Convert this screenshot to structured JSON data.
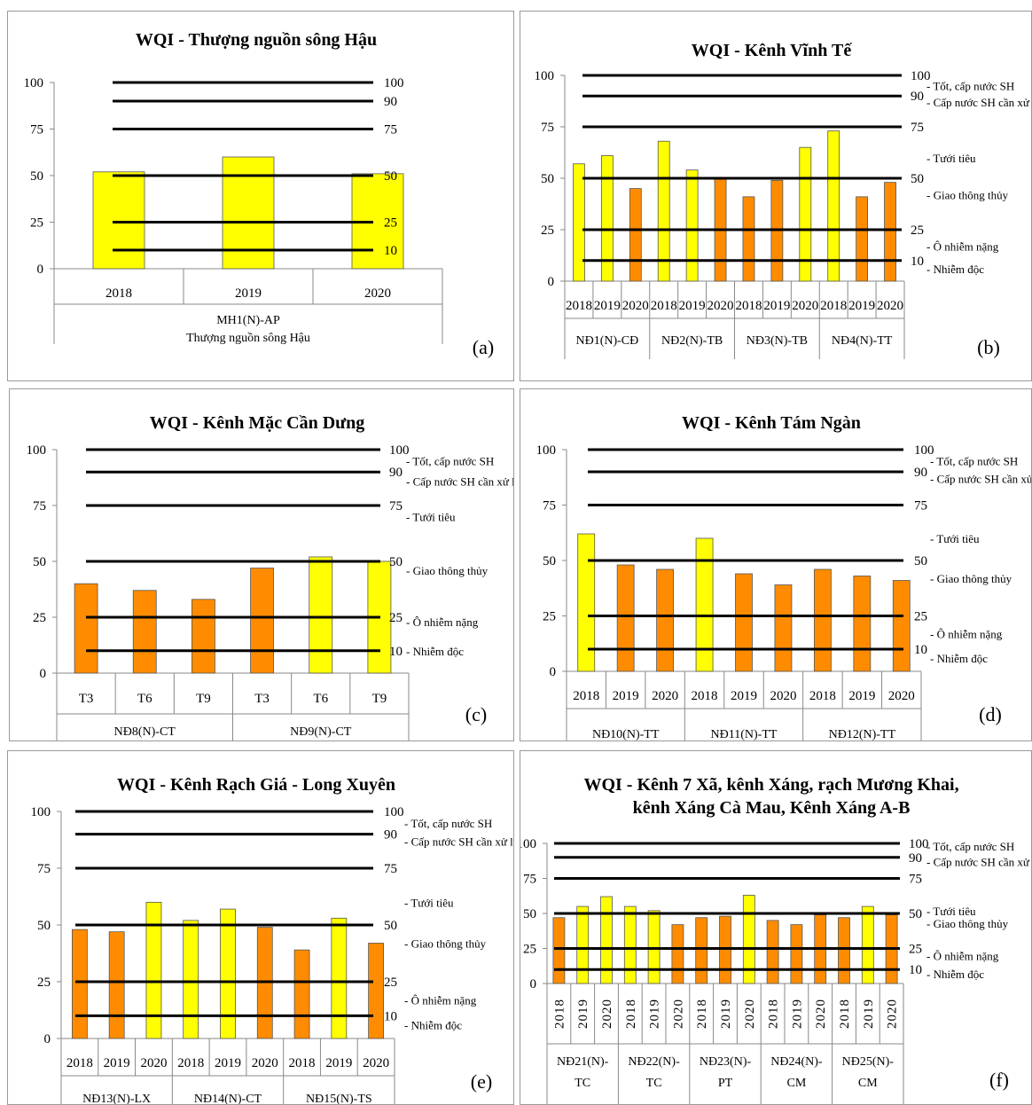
{
  "colors": {
    "yellow": "#ffff00",
    "orange": "#ff8c00",
    "line": "#000000"
  },
  "chart_data": [
    {
      "id": "a",
      "type": "bar",
      "title": "WQI - Thượng nguồn sông Hậu",
      "panel_label": "(a)",
      "ylim": [
        0,
        100
      ],
      "yticks": [
        0,
        25,
        50,
        75,
        100
      ],
      "thresholds": [
        100,
        90,
        75,
        50,
        25,
        10
      ],
      "threshold_labels": [
        "100",
        "90",
        "75",
        "50",
        "25",
        "10"
      ],
      "threshold_notes": [],
      "groups": [
        {
          "name": "MH1(N)-AP\nThượng nguồn sông Hậu",
          "categories": [
            "2018",
            "2019",
            "2020"
          ]
        }
      ],
      "values": [
        52,
        60,
        51
      ],
      "bar_colors": [
        "yellow",
        "yellow",
        "yellow"
      ]
    },
    {
      "id": "b",
      "type": "bar",
      "title": "WQI - Kênh Vĩnh Tế",
      "panel_label": "(b)",
      "ylim": [
        0,
        100
      ],
      "yticks": [
        0,
        25,
        50,
        75,
        100
      ],
      "thresholds": [
        100,
        90,
        75,
        50,
        25,
        10
      ],
      "threshold_labels": [
        "100",
        "90",
        "75",
        "50",
        "25",
        "10"
      ],
      "threshold_notes": [
        "- Tốt, cấp nước SH",
        "- Cấp nước SH cần xử lý",
        "- Tưới tiêu",
        "- Giao thông thủy",
        "- Ô nhiễm nặng",
        "- Nhiễm độc"
      ],
      "groups": [
        {
          "name": "NĐ1(N)-CĐ",
          "categories": [
            "2018",
            "2019",
            "2020"
          ]
        },
        {
          "name": "NĐ2(N)-TB",
          "categories": [
            "2018",
            "2019",
            "2020"
          ]
        },
        {
          "name": "NĐ3(N)-TB",
          "categories": [
            "2018",
            "2019",
            "2020"
          ]
        },
        {
          "name": "NĐ4(N)-TT",
          "categories": [
            "2018",
            "2019",
            "2020"
          ]
        }
      ],
      "values": [
        57,
        61,
        45,
        68,
        54,
        50,
        41,
        49,
        65,
        73,
        41,
        48
      ],
      "bar_colors": [
        "yellow",
        "yellow",
        "orange",
        "yellow",
        "yellow",
        "orange",
        "orange",
        "orange",
        "yellow",
        "yellow",
        "orange",
        "orange"
      ]
    },
    {
      "id": "c",
      "type": "bar",
      "title": "WQI - Kênh Mặc Cần Dưng",
      "panel_label": "(c)",
      "ylim": [
        0,
        100
      ],
      "yticks": [
        0,
        25,
        50,
        75,
        100
      ],
      "thresholds": [
        100,
        90,
        75,
        50,
        25,
        10
      ],
      "threshold_labels": [
        "100",
        "90",
        "75",
        "50",
        "25",
        "10"
      ],
      "threshold_notes": [
        "- Tốt, cấp nước SH",
        "- Cấp nước SH cần xử lý",
        "- Tưới tiêu",
        "- Giao thông thủy",
        "- Ô nhiễm nặng",
        "- Nhiễm độc"
      ],
      "groups": [
        {
          "name": "NĐ8(N)-CT",
          "categories": [
            "T3",
            "T6",
            "T9"
          ]
        },
        {
          "name": "NĐ9(N)-CT",
          "categories": [
            "T3",
            "T6",
            "T9"
          ]
        }
      ],
      "values": [
        40,
        37,
        33,
        47,
        52,
        50
      ],
      "bar_colors": [
        "orange",
        "orange",
        "orange",
        "orange",
        "yellow",
        "yellow"
      ]
    },
    {
      "id": "d",
      "type": "bar",
      "title": "WQI - Kênh Tám Ngàn",
      "panel_label": "(d)",
      "ylim": [
        0,
        100
      ],
      "yticks": [
        0,
        25,
        50,
        75,
        100
      ],
      "thresholds": [
        100,
        90,
        75,
        50,
        25,
        10
      ],
      "threshold_labels": [
        "100",
        "90",
        "75",
        "50",
        "25",
        "10"
      ],
      "threshold_notes": [
        "- Tốt, cấp nước SH",
        "- Cấp nước SH cần xử lý",
        "- Tưới tiêu",
        "- Giao thông thủy",
        "- Ô nhiễm nặng",
        "- Nhiễm độc"
      ],
      "groups": [
        {
          "name": "NĐ10(N)-TT",
          "categories": [
            "2018",
            "2019",
            "2020"
          ]
        },
        {
          "name": "NĐ11(N)-TT",
          "categories": [
            "2018",
            "2019",
            "2020"
          ]
        },
        {
          "name": "NĐ12(N)-TT",
          "categories": [
            "2018",
            "2019",
            "2020"
          ]
        }
      ],
      "values": [
        62,
        48,
        46,
        60,
        44,
        39,
        46,
        43,
        41
      ],
      "bar_colors": [
        "yellow",
        "orange",
        "orange",
        "yellow",
        "orange",
        "orange",
        "orange",
        "orange",
        "orange"
      ]
    },
    {
      "id": "e",
      "type": "bar",
      "title": "WQI - Kênh Rạch Giá - Long Xuyên",
      "panel_label": "(e)",
      "ylim": [
        0,
        100
      ],
      "yticks": [
        0,
        25,
        50,
        75,
        100
      ],
      "thresholds": [
        100,
        90,
        75,
        50,
        25,
        10
      ],
      "threshold_labels": [
        "100",
        "90",
        "75",
        "50",
        "25",
        "10"
      ],
      "threshold_notes": [
        "- Tốt, cấp nước SH",
        "- Cấp nước SH cần xử lý",
        "- Tưới tiêu",
        "- Giao thông thủy",
        "- Ô nhiễm nặng",
        "- Nhiễm độc"
      ],
      "groups": [
        {
          "name": "NĐ13(N)-LX",
          "categories": [
            "2018",
            "2019",
            "2020"
          ]
        },
        {
          "name": "NĐ14(N)-CT",
          "categories": [
            "2018",
            "2019",
            "2020"
          ]
        },
        {
          "name": "NĐ15(N)-TS",
          "categories": [
            "2018",
            "2019",
            "2020"
          ]
        }
      ],
      "values": [
        48,
        47,
        60,
        52,
        57,
        49,
        39,
        53,
        42
      ],
      "bar_colors": [
        "orange",
        "orange",
        "yellow",
        "yellow",
        "yellow",
        "orange",
        "orange",
        "yellow",
        "orange"
      ]
    },
    {
      "id": "f",
      "type": "bar",
      "title": "WQI - Kênh 7 Xã, kênh Xáng, rạch Mương Khai,\nkênh Xáng Cà Mau, Kênh Xáng A-B",
      "panel_label": "(f)",
      "ylim": [
        0,
        100
      ],
      "yticks": [
        0,
        25,
        50,
        75,
        100
      ],
      "thresholds": [
        100,
        90,
        75,
        50,
        25,
        10
      ],
      "threshold_labels": [
        "100",
        "90",
        "75",
        "50",
        "25",
        "10"
      ],
      "threshold_notes": [
        "- Tốt, cấp nước SH",
        "- Cấp nước SH cần xử lý",
        "- Tưới tiêu",
        "- Giao thông thủy",
        "- Ô nhiễm nặng",
        "- Nhiễm độc"
      ],
      "groups": [
        {
          "name": "NĐ21(N)-\nTC",
          "categories": [
            "2018",
            "2019",
            "2020"
          ]
        },
        {
          "name": "NĐ22(N)-\nTC",
          "categories": [
            "2018",
            "2019",
            "2020"
          ]
        },
        {
          "name": "NĐ23(N)-\nPT",
          "categories": [
            "2018",
            "2019",
            "2020"
          ]
        },
        {
          "name": "NĐ24(N)-\nCM",
          "categories": [
            "2018",
            "2019",
            "2020"
          ]
        },
        {
          "name": "NĐ25(N)-\nCM",
          "categories": [
            "2018",
            "2019",
            "2020"
          ]
        }
      ],
      "values": [
        47,
        55,
        62,
        55,
        52,
        42,
        47,
        48,
        63,
        45,
        42,
        49,
        47,
        55,
        49
      ],
      "bar_colors": [
        "orange",
        "yellow",
        "yellow",
        "yellow",
        "yellow",
        "orange",
        "orange",
        "orange",
        "yellow",
        "orange",
        "orange",
        "orange",
        "orange",
        "yellow",
        "orange"
      ]
    }
  ]
}
